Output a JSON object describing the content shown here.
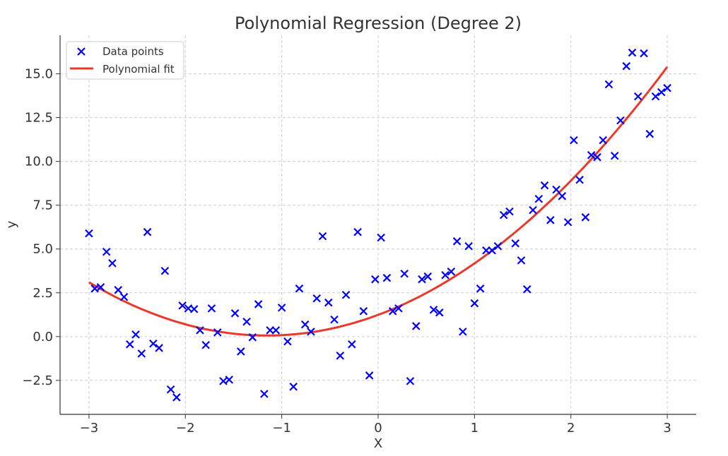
{
  "chart_data": {
    "type": "scatter",
    "title": "Polynomial Regression (Degree 2)",
    "xlabel": "X",
    "ylabel": "y",
    "xlim": [
      -3.3,
      3.3
    ],
    "ylim": [
      -4.44,
      17.2
    ],
    "xticks": [
      -3,
      -2,
      -1,
      0,
      1,
      2,
      3
    ],
    "xtick_labels": [
      "−3",
      "−2",
      "−1",
      "0",
      "1",
      "2",
      "3"
    ],
    "yticks": [
      -2.5,
      0,
      2.5,
      5,
      7.5,
      10,
      12.5,
      15
    ],
    "ytick_labels": [
      "−2.5",
      "0.0",
      "2.5",
      "5.0",
      "7.5",
      "10.0",
      "12.5",
      "15.0"
    ],
    "grid": true,
    "legend_position": "top-left",
    "series": [
      {
        "name": "Data points",
        "kind": "scatter",
        "marker": "x",
        "color": "#0000ff",
        "x_range": [
          -3,
          3
        ],
        "count": 100,
        "y": [
          5.89,
          2.74,
          2.82,
          4.84,
          4.19,
          2.66,
          2.26,
          -0.44,
          0.12,
          -0.97,
          5.97,
          -0.4,
          -0.65,
          3.75,
          -3.02,
          -3.47,
          1.77,
          1.61,
          1.57,
          0.36,
          -0.48,
          1.61,
          0.24,
          -2.54,
          -2.46,
          1.33,
          -0.85,
          0.85,
          -0.04,
          1.85,
          -3.27,
          0.36,
          0.36,
          1.65,
          -0.28,
          -2.86,
          2.74,
          0.69,
          0.28,
          2.18,
          5.73,
          1.94,
          0.97,
          -1.09,
          2.38,
          -0.44,
          5.97,
          1.45,
          -2.22,
          3.27,
          5.65,
          3.35,
          1.45,
          1.61,
          3.59,
          -2.54,
          0.6,
          3.27,
          3.43,
          1.53,
          1.37,
          3.51,
          3.71,
          5.44,
          0.28,
          5.16,
          1.9,
          2.74,
          4.92,
          4.92,
          5.16,
          6.94,
          7.14,
          5.32,
          4.35,
          2.7,
          7.22,
          7.86,
          8.63,
          6.65,
          8.39,
          8.02,
          6.53,
          11.21,
          8.95,
          6.81,
          10.36,
          10.24,
          11.21,
          14.4,
          10.32,
          12.34,
          15.44,
          16.21,
          13.71,
          16.17,
          11.57,
          13.71,
          13.95,
          14.19
        ]
      },
      {
        "name": "Polynomial fit",
        "kind": "line",
        "color": "#e8392b",
        "coefficients": {
          "a": 0.89,
          "b": 2.05,
          "c": 1.24
        },
        "x_range": [
          -3,
          3
        ]
      }
    ]
  }
}
